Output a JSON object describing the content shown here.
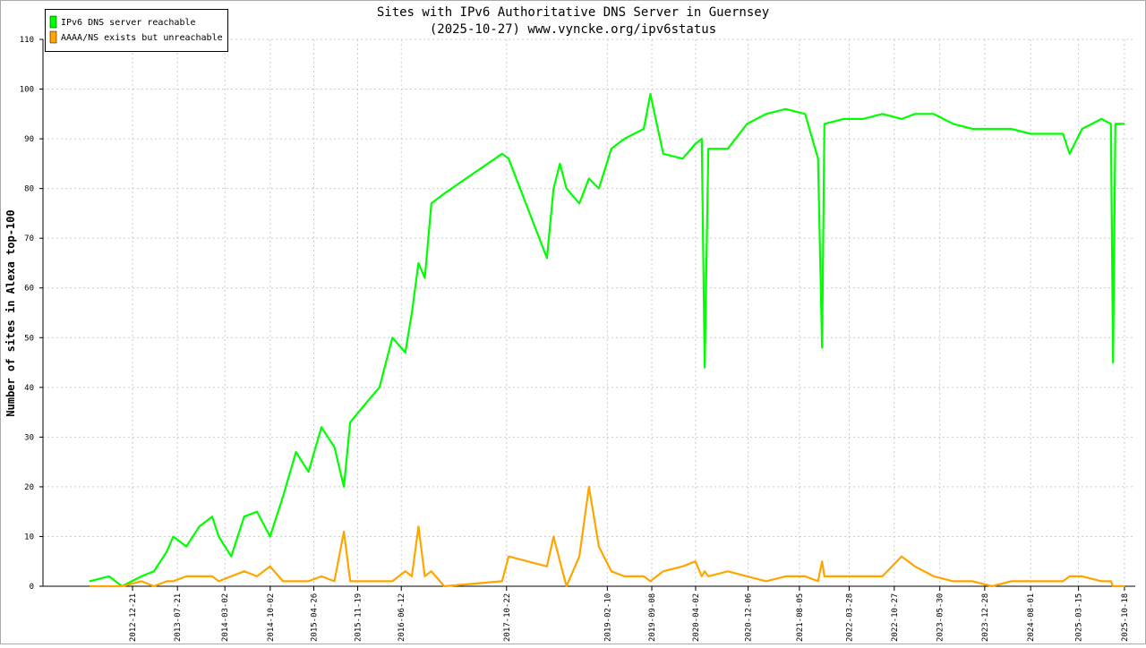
{
  "chart_data": {
    "type": "line",
    "title": "Sites with IPv6 Authoritative DNS Server in Guernsey",
    "subtitle": "(2025-10-27) www.vyncke.org/ipv6status",
    "y_label": "Number of sites in Alexa top-100",
    "legend": "top-left",
    "grid": true,
    "xlim": [
      "2011-10-25",
      "2025-12-08"
    ],
    "xticks": [
      "2012-12-21",
      "2013-07-21",
      "2014-03-02",
      "2014-10-02",
      "2015-04-26",
      "2015-11-19",
      "2016-06-12",
      "2017-10-22",
      "2019-02-10",
      "2019-09-08",
      "2020-04-02",
      "2020-12-06",
      "2021-08-05",
      "2022-03-28",
      "2022-10-27",
      "2023-05-30",
      "2023-12-28",
      "2024-08-01",
      "2025-03-15",
      "2025-10-18"
    ],
    "ylim": [
      0,
      110
    ],
    "yticks": [
      0,
      10,
      20,
      30,
      40,
      50,
      60,
      70,
      80,
      90,
      100,
      110
    ],
    "x": [
      "2012-06-01",
      "2012-09-01",
      "2012-11-01",
      "2013-02-01",
      "2013-04-01",
      "2013-06-01",
      "2013-07-01",
      "2013-09-01",
      "2013-11-01",
      "2014-01-01",
      "2014-02-01",
      "2014-04-01",
      "2014-06-01",
      "2014-08-01",
      "2014-10-01",
      "2014-12-01",
      "2015-02-01",
      "2015-04-01",
      "2015-06-01",
      "2015-08-01",
      "2015-09-15",
      "2015-10-15",
      "2016-01-01",
      "2016-03-01",
      "2016-05-01",
      "2016-07-01",
      "2016-08-01",
      "2016-09-01",
      "2016-10-01",
      "2016-11-01",
      "2017-01-01",
      "2017-10-01",
      "2017-11-01",
      "2018-05-01",
      "2018-06-01",
      "2018-07-01",
      "2018-08-01",
      "2018-10-01",
      "2018-11-15",
      "2019-01-01",
      "2019-03-01",
      "2019-05-01",
      "2019-08-01",
      "2019-09-01",
      "2019-11-01",
      "2020-02-01",
      "2020-04-01",
      "2020-05-01",
      "2020-05-15",
      "2020-06-01",
      "2020-09-01",
      "2020-12-01",
      "2021-03-01",
      "2021-06-01",
      "2021-09-01",
      "2021-11-01",
      "2021-11-20",
      "2021-12-01",
      "2022-03-01",
      "2022-06-01",
      "2022-09-01",
      "2022-12-01",
      "2023-02-01",
      "2023-05-01",
      "2023-08-01",
      "2023-11-01",
      "2024-02-01",
      "2024-05-01",
      "2024-08-01",
      "2024-11-01",
      "2025-01-01",
      "2025-02-01",
      "2025-04-01",
      "2025-07-01",
      "2025-08-15",
      "2025-08-25",
      "2025-09-05",
      "2025-10-20"
    ],
    "series": [
      {
        "name": "IPv6 DNS server reachable",
        "color": "#00ff00",
        "values": [
          1,
          2,
          0,
          2,
          3,
          7,
          10,
          8,
          12,
          14,
          10,
          6,
          14,
          15,
          10,
          18,
          27,
          23,
          32,
          28,
          20,
          33,
          37,
          40,
          50,
          47,
          55,
          65,
          62,
          77,
          79,
          87,
          86,
          66,
          80,
          85,
          80,
          77,
          82,
          80,
          88,
          90,
          92,
          99,
          87,
          86,
          89,
          90,
          44,
          88,
          88,
          93,
          95,
          96,
          95,
          86,
          48,
          93,
          94,
          94,
          95,
          94,
          95,
          95,
          93,
          92,
          92,
          92,
          91,
          91,
          91,
          87,
          92,
          94,
          93,
          45,
          93,
          93
        ]
      },
      {
        "name": "AAAA/NS exists but unreachable",
        "color": "#ffa500",
        "values": [
          0,
          0,
          0,
          1,
          0,
          1,
          1,
          2,
          2,
          2,
          1,
          2,
          3,
          2,
          4,
          1,
          1,
          1,
          2,
          1,
          11,
          1,
          1,
          1,
          1,
          3,
          2,
          12,
          2,
          3,
          0,
          1,
          6,
          4,
          10,
          5,
          0,
          6,
          20,
          8,
          3,
          2,
          2,
          1,
          3,
          4,
          5,
          2,
          3,
          2,
          3,
          2,
          1,
          2,
          2,
          1,
          5,
          2,
          2,
          2,
          2,
          6,
          4,
          2,
          1,
          1,
          0,
          1,
          1,
          1,
          1,
          2,
          2,
          1,
          1,
          0,
          0,
          0
        ]
      }
    ]
  }
}
